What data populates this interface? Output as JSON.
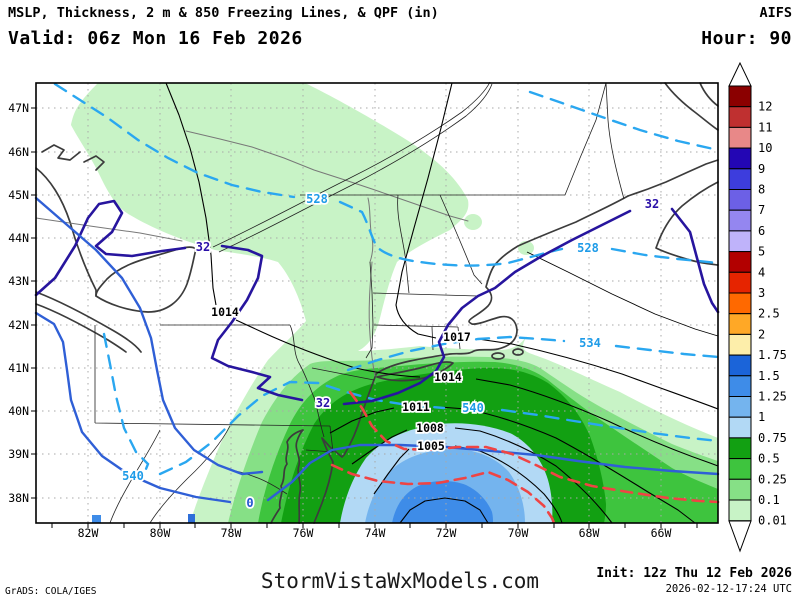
{
  "header": {
    "product_title": "MSLP, Thickness, 2 m & 850 Freezing Lines, & QPF (in)",
    "model": "AIFS",
    "valid_time": "Valid: 06z Mon 16 Feb 2026",
    "forecast_hour": "Hour: 90"
  },
  "footer": {
    "website": "StormVistaWxModels.com",
    "init_time": "Init: 12z Thu 12 Feb 2026",
    "generated_timestamp": "2026-02-12-17:24 UTC",
    "software_credit": "GrADS: COLA/IGES"
  },
  "axes": {
    "latitudes": [
      "47N",
      "46N",
      "45N",
      "44N",
      "43N",
      "42N",
      "41N",
      "40N",
      "39N",
      "38N"
    ],
    "longitudes": [
      "82W",
      "80W",
      "78W",
      "76W",
      "74W",
      "72W",
      "70W",
      "68W",
      "66W"
    ]
  },
  "colorbar": {
    "unit": "in",
    "levels": [
      "12",
      "11",
      "10",
      "9",
      "8",
      "7",
      "6",
      "5",
      "4",
      "3",
      "2.5",
      "2",
      "1.75",
      "1.5",
      "1.25",
      "1",
      "0.75",
      "0.5",
      "0.25",
      "0.1",
      "0.01"
    ],
    "colors": [
      "#8b0000",
      "#bf3030",
      "#e88888",
      "#2306b4",
      "#3d3ddd",
      "#6c60e6",
      "#9486f0",
      "#bfb3fa",
      "#b20000",
      "#e62400",
      "#ff6900",
      "#ffa826",
      "#fdeeaa",
      "#1b64d9",
      "#3e8ce8",
      "#74b4ee",
      "#b2d9f5",
      "#12a012",
      "#3ec43e",
      "#86e086",
      "#c8f3c6"
    ]
  },
  "contour_labels": {
    "mslp": [
      "1017",
      "1014",
      "1014",
      "1011",
      "1008",
      "1005"
    ],
    "thickness": [
      "528",
      "528",
      "534",
      "540",
      "540"
    ],
    "freezing_2m": [
      "32",
      "32",
      "32"
    ],
    "freezing_850": [
      "0"
    ]
  },
  "map_content": {
    "mslp_isobars_hpa": [
      1005,
      1008,
      1011,
      1014,
      1017
    ],
    "thickness_lines_dam": [
      528,
      534,
      540
    ],
    "qpf_fill_levels_in": [
      "0.01",
      "0.1",
      "0.25",
      "0.5",
      "0.75",
      "1",
      "1.25"
    ]
  }
}
